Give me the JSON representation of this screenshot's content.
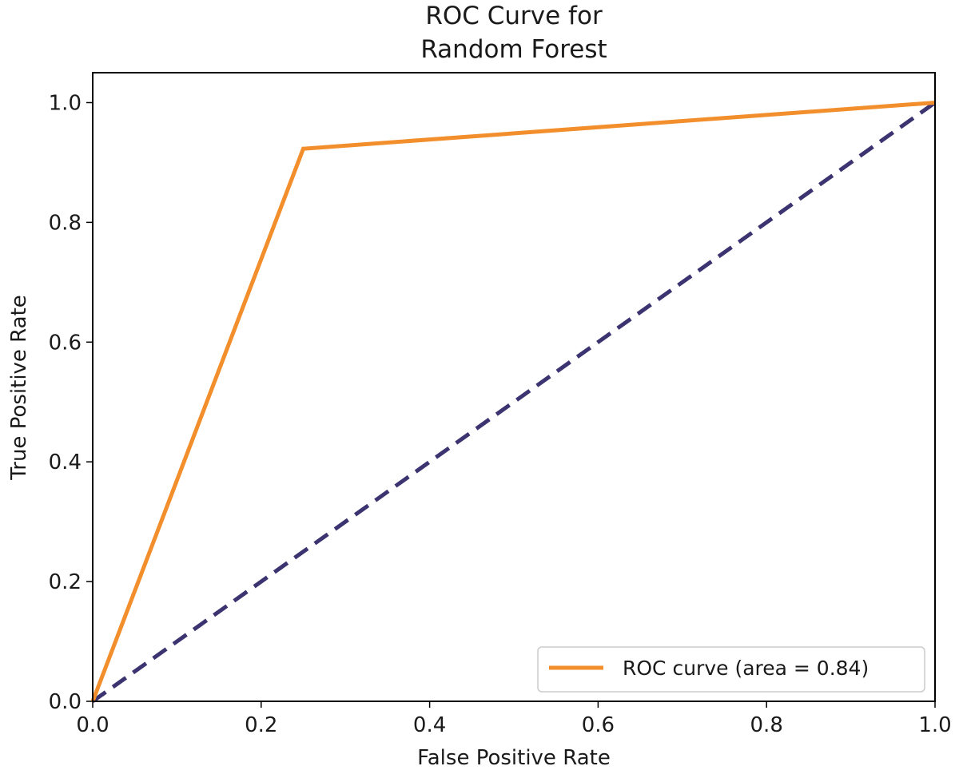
{
  "chart_data": {
    "type": "line",
    "title": [
      "ROC Curve for",
      "Random Forest"
    ],
    "xlabel": "False Positive Rate",
    "ylabel": "True Positive Rate",
    "xlim": [
      0.0,
      1.0
    ],
    "ylim": [
      0.0,
      1.05
    ],
    "x_ticks": [
      "0.0",
      "0.2",
      "0.4",
      "0.6",
      "0.8",
      "1.0"
    ],
    "y_ticks": [
      "0.0",
      "0.2",
      "0.4",
      "0.6",
      "0.8",
      "1.0"
    ],
    "grid": false,
    "legend_position": "lower-right",
    "series": [
      {
        "name": "ROC curve (area = 0.84)",
        "color": "#f28e2b",
        "style": "solid",
        "x": [
          0.0,
          0.25,
          1.0
        ],
        "y": [
          0.0,
          0.923,
          1.0
        ]
      },
      {
        "color": "#3b3470",
        "style": "dashed",
        "x": [
          0.0,
          1.0
        ],
        "y": [
          0.0,
          1.0
        ]
      }
    ]
  }
}
